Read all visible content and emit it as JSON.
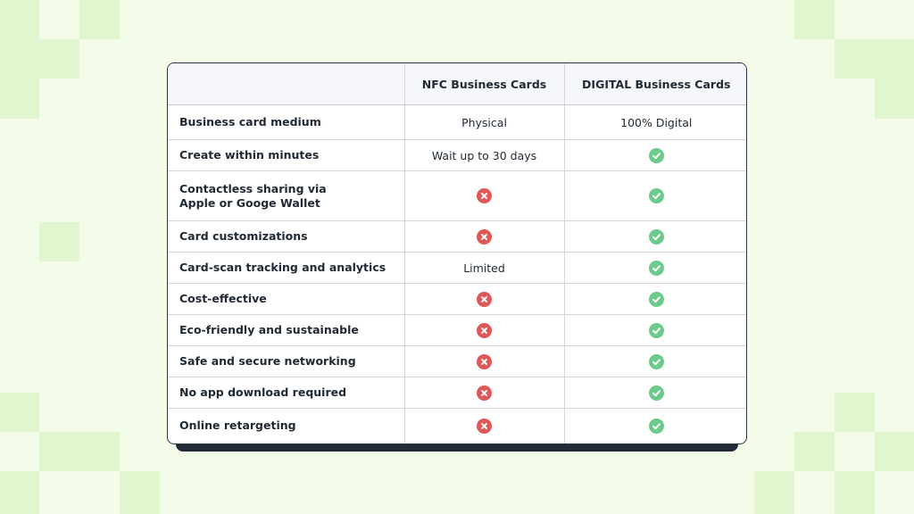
{
  "colors": {
    "check": "#6ccb8b",
    "cross": "#e05757",
    "background": "#f3fbe9",
    "accent_squares": "#e1f5cf"
  },
  "table": {
    "headers": [
      "",
      "NFC Business Cards",
      "DIGITAL Business Cards"
    ],
    "rows": [
      {
        "feature": "Business card medium",
        "nfc": {
          "type": "text",
          "text": "Physical"
        },
        "digital": {
          "type": "text",
          "text": "100% Digital"
        }
      },
      {
        "feature": "Create within minutes",
        "nfc": {
          "type": "text",
          "text": "Wait up to 30 days"
        },
        "digital": {
          "type": "check"
        }
      },
      {
        "feature": "Contactless sharing via\nApple or Googe Wallet",
        "nfc": {
          "type": "cross"
        },
        "digital": {
          "type": "check"
        }
      },
      {
        "feature": "Card customizations",
        "nfc": {
          "type": "cross"
        },
        "digital": {
          "type": "check"
        }
      },
      {
        "feature": "Card-scan tracking and analytics",
        "nfc": {
          "type": "text",
          "text": "Limited"
        },
        "digital": {
          "type": "check"
        }
      },
      {
        "feature": "Cost-effective",
        "nfc": {
          "type": "cross"
        },
        "digital": {
          "type": "check"
        }
      },
      {
        "feature": "Eco-friendly and sustainable",
        "nfc": {
          "type": "cross"
        },
        "digital": {
          "type": "check"
        }
      },
      {
        "feature": "Safe and secure networking",
        "nfc": {
          "type": "cross"
        },
        "digital": {
          "type": "check"
        }
      },
      {
        "feature": "No app download required",
        "nfc": {
          "type": "cross"
        },
        "digital": {
          "type": "check"
        }
      },
      {
        "feature": "Online retargeting",
        "nfc": {
          "type": "cross"
        },
        "digital": {
          "type": "check"
        }
      }
    ]
  }
}
